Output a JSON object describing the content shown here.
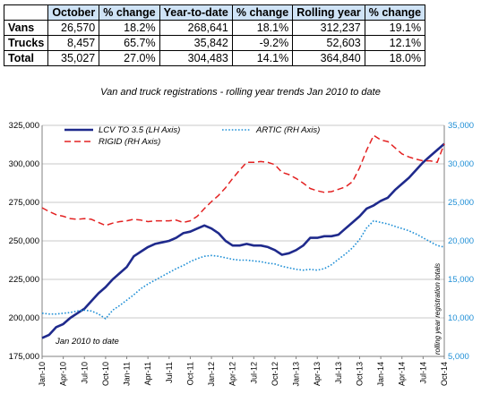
{
  "table": {
    "headers": [
      "",
      "October",
      "% change",
      "Year-to-date",
      "% change",
      "Rolling year",
      "% change"
    ],
    "rows": [
      {
        "label": "Vans",
        "cells": [
          "26,570",
          "18.2%",
          "268,641",
          "18.1%",
          "312,237",
          "19.1%"
        ]
      },
      {
        "label": "Trucks",
        "cells": [
          "8,457",
          "65.7%",
          "35,842",
          "-9.2%",
          "52,603",
          "12.1%"
        ]
      },
      {
        "label": "Total",
        "cells": [
          "35,027",
          "27.0%",
          "304,483",
          "14.1%",
          "364,840",
          "18.0%"
        ]
      }
    ]
  },
  "chart_data": {
    "type": "line",
    "title": "Van and truck registrations - rolling year trends Jan 2010 to date",
    "annotation": "Jan 2010 to date",
    "y2label": "rolling year registration totals",
    "x_ticks": [
      "Jan-10",
      "Apr-10",
      "Jul-10",
      "Oct-10",
      "Jan-11",
      "Apr-11",
      "Jul-11",
      "Oct-11",
      "Jan-12",
      "Apr-12",
      "Jul-12",
      "Oct-12",
      "Jan-13",
      "Apr-13",
      "Jul-13",
      "Oct-13",
      "Jan-14",
      "Apr-14",
      "Jul-14",
      "Oct-14"
    ],
    "ylim": [
      175000,
      325000
    ],
    "y_ticks": [
      "175,000",
      "200,000",
      "225,000",
      "250,000",
      "275,000",
      "300,000",
      "325,000"
    ],
    "y2lim": [
      5000,
      35000
    ],
    "y2_ticks": [
      "5,000",
      "10,000",
      "15,000",
      "20,000",
      "25,000",
      "30,000",
      "35,000"
    ],
    "grid": true,
    "legend_position": "top",
    "x_months": [
      "2010-01",
      "2010-02",
      "2010-03",
      "2010-04",
      "2010-05",
      "2010-06",
      "2010-07",
      "2010-08",
      "2010-09",
      "2010-10",
      "2010-11",
      "2010-12",
      "2011-01",
      "2011-02",
      "2011-03",
      "2011-04",
      "2011-05",
      "2011-06",
      "2011-07",
      "2011-08",
      "2011-09",
      "2011-10",
      "2011-11",
      "2011-12",
      "2012-01",
      "2012-02",
      "2012-03",
      "2012-04",
      "2012-05",
      "2012-06",
      "2012-07",
      "2012-08",
      "2012-09",
      "2012-10",
      "2012-11",
      "2012-12",
      "2013-01",
      "2013-02",
      "2013-03",
      "2013-04",
      "2013-05",
      "2013-06",
      "2013-07",
      "2013-08",
      "2013-09",
      "2013-10",
      "2013-11",
      "2013-12",
      "2014-01",
      "2014-02",
      "2014-03",
      "2014-04",
      "2014-05",
      "2014-06",
      "2014-07",
      "2014-08",
      "2014-09",
      "2014-10"
    ],
    "series": [
      {
        "name": "LCV TO 3.5 (LH Axis)",
        "axis": "left",
        "color": "#1f2a8c",
        "dash": "solid",
        "values": [
          187000,
          189000,
          194000,
          196000,
          200000,
          203000,
          206000,
          211000,
          216000,
          220000,
          225000,
          229000,
          233000,
          240000,
          243000,
          246000,
          248000,
          249000,
          250000,
          252000,
          255000,
          256000,
          258000,
          260000,
          258000,
          255000,
          250000,
          247000,
          247000,
          248000,
          247000,
          247000,
          246000,
          244000,
          241000,
          242000,
          244000,
          247000,
          252000,
          252000,
          253000,
          253000,
          254000,
          258000,
          262000,
          266000,
          271000,
          273000,
          276000,
          278000,
          283000,
          287000,
          291000,
          296000,
          301000,
          305000,
          309000,
          313000
        ]
      },
      {
        "name": "ARTIC (RH Axis)",
        "axis": "right",
        "color": "#1f8fd6",
        "dash": "dotted",
        "values": [
          10600,
          10500,
          10500,
          10600,
          10700,
          10900,
          11000,
          10900,
          10500,
          9900,
          11000,
          11600,
          12300,
          13000,
          13800,
          14400,
          14900,
          15400,
          15900,
          16400,
          16800,
          17300,
          17700,
          18000,
          18100,
          18000,
          17800,
          17600,
          17500,
          17500,
          17400,
          17300,
          17100,
          17000,
          16700,
          16500,
          16300,
          16200,
          16300,
          16200,
          16400,
          16900,
          17600,
          18300,
          19100,
          20200,
          21700,
          22600,
          22400,
          22200,
          21900,
          21600,
          21300,
          20900,
          20400,
          19900,
          19400,
          19200
        ]
      },
      {
        "name": "RIGID (RH Axis)",
        "axis": "right",
        "color": "#e32222",
        "dash": "dashed",
        "values": [
          24300,
          23800,
          23400,
          23200,
          22900,
          22800,
          22900,
          22800,
          22400,
          22000,
          22300,
          22500,
          22600,
          22800,
          22700,
          22500,
          22600,
          22600,
          22600,
          22700,
          22400,
          22600,
          23200,
          24200,
          25100,
          25900,
          26900,
          28100,
          29200,
          30200,
          30200,
          30300,
          30200,
          29900,
          28900,
          28600,
          28100,
          27500,
          26800,
          26500,
          26300,
          26400,
          26700,
          27000,
          27700,
          29500,
          31800,
          33700,
          33100,
          32900,
          32100,
          31300,
          30900,
          30600,
          30400,
          30400,
          30200,
          32600
        ]
      }
    ]
  }
}
